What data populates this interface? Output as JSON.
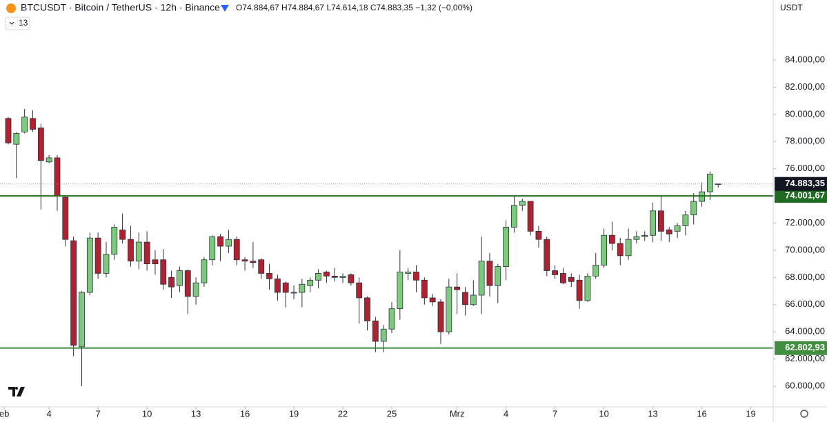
{
  "chart_data": {
    "type": "candlestick",
    "title": "BTCUSDT · Bitcoin / TetherUS · 12h · Binance",
    "ohlc_text": "O74.884,67 H74.884,67 L74.614,18 C74.883,35 −1,32 (−0,00%)",
    "indicator_badge": "13",
    "currency": "USDT",
    "up_color": "#7ccb7c",
    "down_color": "#b3202e",
    "open": [
      79700,
      77800,
      78700,
      79700,
      79000,
      76500,
      76800,
      73900,
      70700,
      62900,
      66900,
      70900,
      68300,
      69700,
      71500,
      70800,
      69200,
      70600,
      69300,
      69300,
      68000,
      67400,
      68500,
      66600,
      67600,
      69300,
      71000,
      70300,
      70800,
      69300,
      69200,
      69300,
      68300,
      67900,
      67600,
      66850,
      66900,
      67400,
      67800,
      68400,
      68100,
      68000,
      68200,
      67600,
      66500,
      64800,
      63300,
      64200,
      65700,
      68300,
      68400,
      67800,
      66500,
      66200,
      64000,
      67300,
      66900,
      66000,
      66700,
      69200,
      67400,
      68800,
      71700,
      73300,
      73600,
      71400,
      70800,
      68500,
      68300,
      68000,
      67800,
      66300,
      68100,
      68900,
      71100,
      70500,
      69600,
      70800,
      71000,
      71100,
      72900,
      71500,
      71400,
      71800,
      72600,
      73600,
      74300,
      74884.67
    ],
    "high": [
      79800,
      78700,
      80400,
      80300,
      79300,
      77000,
      77000,
      74000,
      71000,
      67000,
      71300,
      71300,
      70600,
      71900,
      72700,
      71800,
      71300,
      71400,
      70000,
      70100,
      68500,
      68800,
      68600,
      68000,
      69500,
      71100,
      71200,
      71500,
      71000,
      69500,
      70600,
      69400,
      69000,
      68200,
      67700,
      67400,
      67900,
      68000,
      68600,
      68500,
      68700,
      68300,
      68300,
      68000,
      66600,
      65100,
      64500,
      66200,
      70000,
      68700,
      68900,
      68000,
      66800,
      66400,
      67900,
      68300,
      67300,
      67800,
      71000,
      69800,
      69000,
      72200,
      74000,
      73800,
      73600,
      71800,
      71000,
      68900,
      68700,
      68300,
      68200,
      68300,
      69800,
      71600,
      72100,
      70900,
      71600,
      71400,
      71400,
      73500,
      74000,
      71700,
      72000,
      72900,
      74200,
      75000,
      75800,
      74884.67
    ],
    "low": [
      77800,
      75300,
      78600,
      78700,
      73000,
      76400,
      72900,
      70300,
      62200,
      60000,
      66700,
      67900,
      68000,
      69300,
      70500,
      68800,
      68600,
      68500,
      68200,
      67100,
      66500,
      66900,
      65300,
      66000,
      67300,
      68900,
      69200,
      69800,
      68900,
      68500,
      68700,
      67900,
      67100,
      66300,
      65800,
      66400,
      65800,
      66900,
      67200,
      67600,
      67700,
      67600,
      67400,
      64600,
      64100,
      62500,
      62500,
      63900,
      64900,
      67800,
      66900,
      66000,
      65900,
      63100,
      63800,
      65300,
      65200,
      65900,
      65300,
      66600,
      66100,
      67800,
      71300,
      72900,
      71100,
      70200,
      68100,
      67900,
      67500,
      67300,
      65700,
      66200,
      67900,
      68700,
      70000,
      68900,
      69300,
      70500,
      70700,
      70600,
      70700,
      70600,
      70900,
      71100,
      71900,
      73200,
      73700,
      74614.18
    ],
    "close": [
      77900,
      78600,
      79800,
      78900,
      76600,
      76800,
      74000,
      70800,
      63000,
      66900,
      70900,
      68300,
      69700,
      71700,
      70800,
      69200,
      70600,
      69000,
      69000,
      67500,
      67300,
      68500,
      66600,
      67600,
      69300,
      71000,
      70300,
      70800,
      69300,
      69200,
      69100,
      68300,
      67900,
      66900,
      66900,
      66900,
      67500,
      67800,
      68300,
      68100,
      68000,
      68100,
      67600,
      66500,
      64800,
      63300,
      64200,
      65700,
      68400,
      68400,
      67800,
      66500,
      66200,
      64000,
      67300,
      67100,
      66000,
      66700,
      69200,
      67400,
      68800,
      71700,
      73300,
      73600,
      71400,
      70800,
      68500,
      68200,
      67600,
      67700,
      66300,
      68100,
      68900,
      71100,
      70500,
      69600,
      70800,
      71000,
      71100,
      72900,
      71400,
      71200,
      71800,
      72600,
      73600,
      74300,
      75600,
      74883.35
    ],
    "xticks": [
      {
        "value": -0.5,
        "label": "eb"
      },
      {
        "value": 5,
        "label": "4"
      },
      {
        "value": 11,
        "label": "7"
      },
      {
        "value": 17,
        "label": "10"
      },
      {
        "value": 23,
        "label": "13"
      },
      {
        "value": 29,
        "label": "16"
      },
      {
        "value": 35,
        "label": "19"
      },
      {
        "value": 41,
        "label": "22"
      },
      {
        "value": 47,
        "label": "25"
      },
      {
        "value": 55,
        "label": "Mrz"
      },
      {
        "value": 61,
        "label": "4"
      },
      {
        "value": 67,
        "label": "7"
      },
      {
        "value": 73,
        "label": "10"
      },
      {
        "value": 79,
        "label": "13"
      },
      {
        "value": 85,
        "label": "16"
      },
      {
        "value": 91,
        "label": "19"
      }
    ],
    "ylim": [
      58480,
      88414
    ],
    "yticks": [
      {
        "value": 60000,
        "label": "60.000,00"
      },
      {
        "value": 62000,
        "label": "62.000,00"
      },
      {
        "value": 64000,
        "label": "64.000,00"
      },
      {
        "value": 66000,
        "label": "66.000,00"
      },
      {
        "value": 68000,
        "label": "68.000,00"
      },
      {
        "value": 70000,
        "label": "70.000,00"
      },
      {
        "value": 72000,
        "label": "72.000,00"
      },
      {
        "value": 74000,
        "label": "74.000,00"
      },
      {
        "value": 76000,
        "label": "76.000,00"
      },
      {
        "value": 78000,
        "label": "78.000,00"
      },
      {
        "value": 80000,
        "label": "80.000,00"
      },
      {
        "value": 82000,
        "label": "82.000,00"
      },
      {
        "value": 84000,
        "label": "84.000,00"
      }
    ],
    "levels": [
      {
        "value": 74001.67,
        "label": "74.001,67",
        "color": "#1f6b22"
      },
      {
        "value": 62802.93,
        "label": "62.802,93",
        "color": "#3f8f3f"
      }
    ],
    "last_price": {
      "value": 74883.35,
      "label": "74.883,35",
      "color": "#131722"
    }
  }
}
